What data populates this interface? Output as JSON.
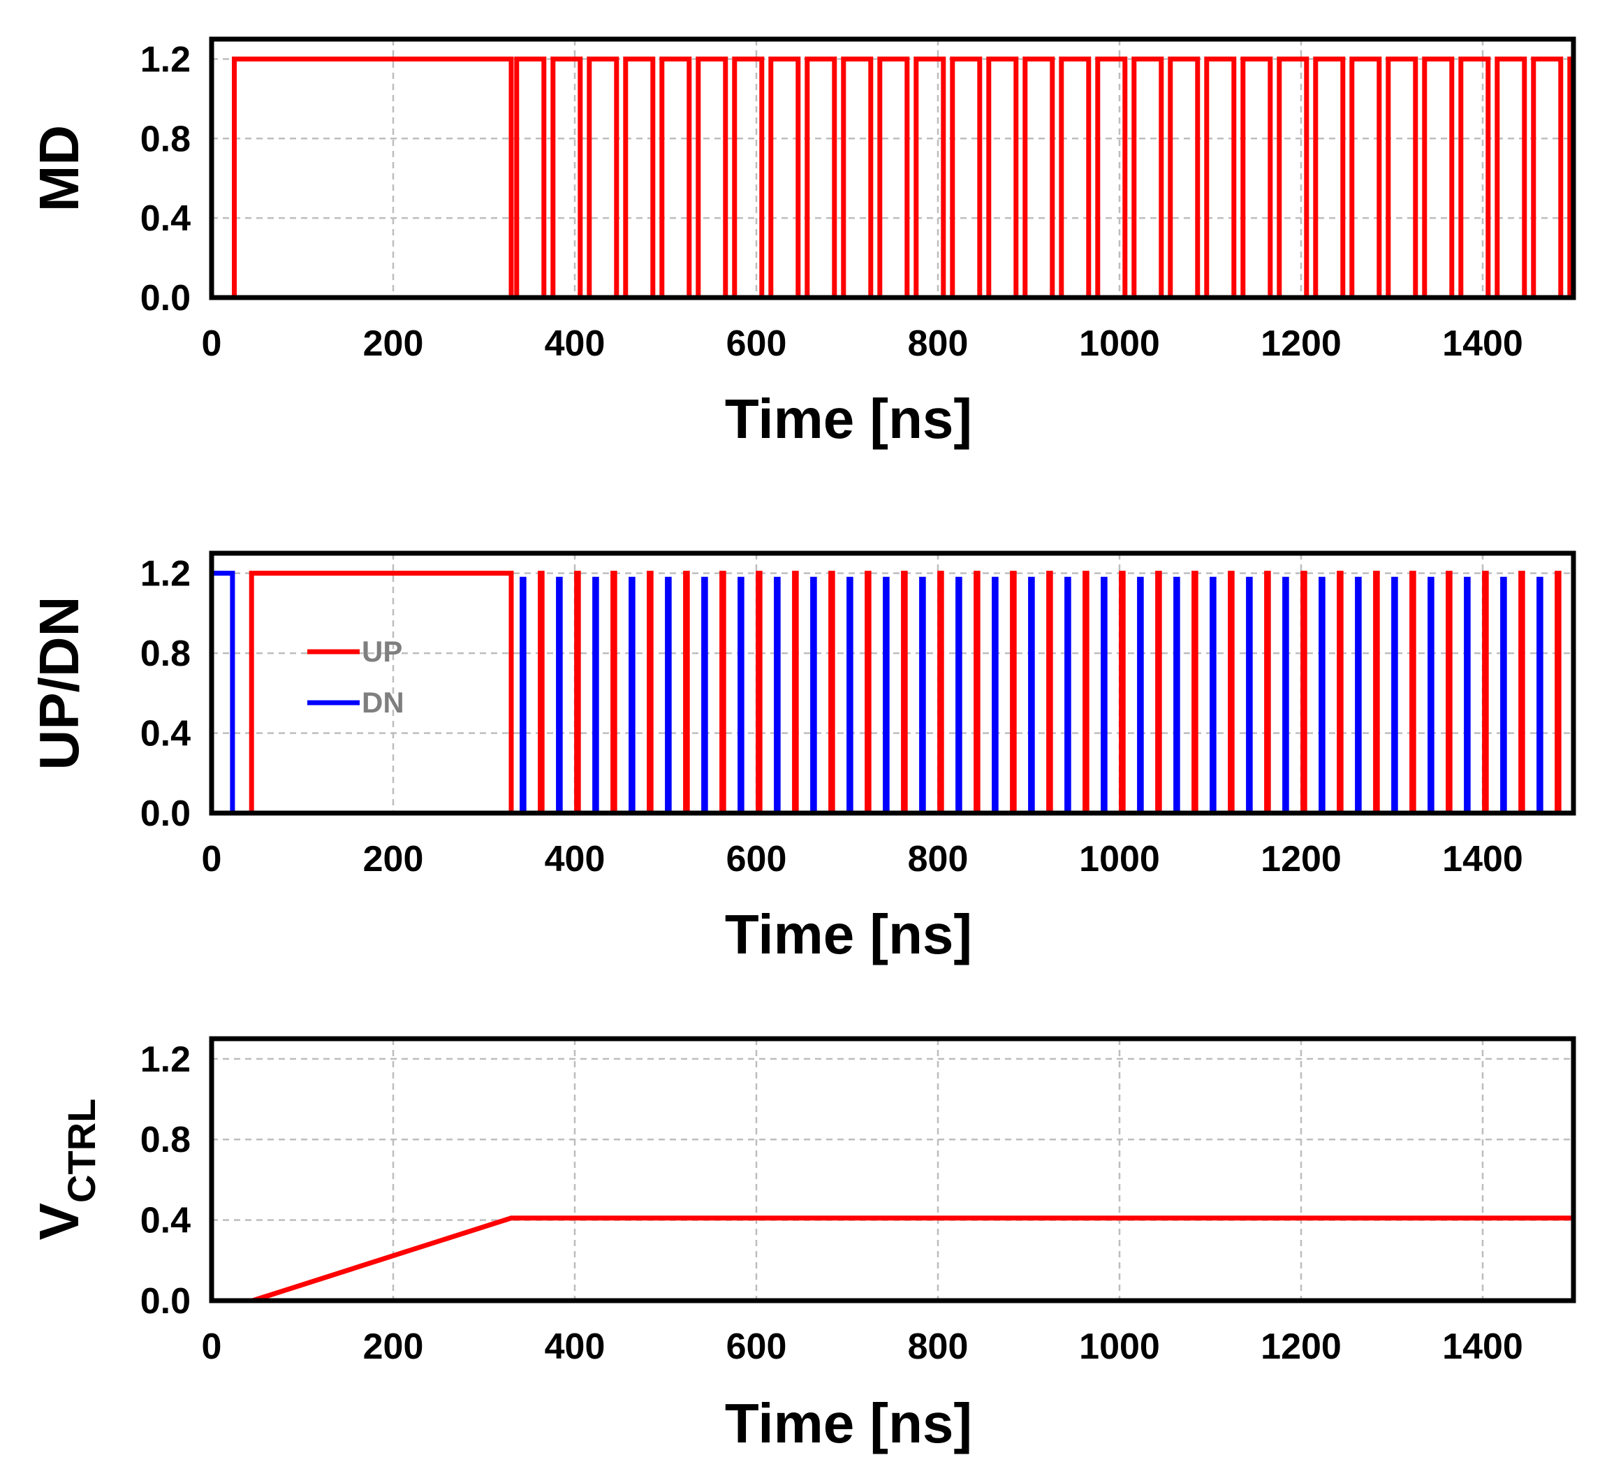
{
  "chart_data": [
    {
      "type": "line",
      "ylabel": "MD",
      "xlabel": "Time [ns]",
      "xlim": [
        0,
        1500
      ],
      "ylim": [
        0,
        1.3
      ],
      "x_ticks": [
        "0",
        "200",
        "400",
        "600",
        "800",
        "1000",
        "1200",
        "1400"
      ],
      "y_ticks": [
        "0.0",
        "0.4",
        "0.8",
        "1.2"
      ],
      "grid": true,
      "series": [
        {
          "color": "#ff0000",
          "description": "High from 25 ns to 330 ns, then square wave of period 40 ns with 30 ns high from 336 ns to 1500 ns",
          "points": [
            [
              0,
              0
            ],
            [
              25,
              0
            ],
            [
              25,
              1.2
            ],
            [
              330,
              1.2
            ],
            [
              330,
              0
            ]
          ],
          "pulse_train": {
            "start": 336,
            "end": 1500,
            "period": 40,
            "high_width": 30,
            "low": 0,
            "high": 1.2
          }
        }
      ]
    },
    {
      "type": "line",
      "ylabel": "UP/DN",
      "xlabel": "Time [ns]",
      "xlim": [
        0,
        1500
      ],
      "ylim": [
        0,
        1.3
      ],
      "x_ticks": [
        "0",
        "200",
        "400",
        "600",
        "800",
        "1000",
        "1200",
        "1400"
      ],
      "y_ticks": [
        "0.0",
        "0.4",
        "0.8",
        "1.2"
      ],
      "grid": true,
      "legend": {
        "placement": "middle-left"
      },
      "series": [
        {
          "name": "UP",
          "color": "#ff0000",
          "points": [
            [
              0,
              0
            ],
            [
              44,
              0
            ],
            [
              44,
              1.2
            ],
            [
              330,
              1.2
            ],
            [
              330,
              0
            ]
          ],
          "pulse_train": {
            "start": 362,
            "end": 1500,
            "period": 40,
            "high_width": 2,
            "low": 0,
            "high": 1.2
          }
        },
        {
          "name": "DN",
          "color": "#0000ff",
          "points": [
            [
              0,
              1.2
            ],
            [
              23,
              1.2
            ],
            [
              23,
              0
            ]
          ],
          "pulse_train": {
            "start": 342,
            "end": 1500,
            "period": 40,
            "high_width": 2,
            "low": 0,
            "high": 1.17
          }
        }
      ]
    },
    {
      "type": "line",
      "ylabel": "V",
      "ylabel_subscript": "CTRL",
      "xlabel": "Time [ns]",
      "xlim": [
        0,
        1500
      ],
      "ylim": [
        0,
        1.3
      ],
      "x_ticks": [
        "0",
        "200",
        "400",
        "600",
        "800",
        "1000",
        "1200",
        "1400"
      ],
      "y_ticks": [
        "0.0",
        "0.4",
        "0.8",
        "1.2"
      ],
      "grid": true,
      "series": [
        {
          "color": "#ff0000",
          "points": [
            [
              0,
              0
            ],
            [
              45,
              0
            ],
            [
              330,
              0.41
            ],
            [
              1500,
              0.41
            ]
          ]
        }
      ]
    }
  ]
}
